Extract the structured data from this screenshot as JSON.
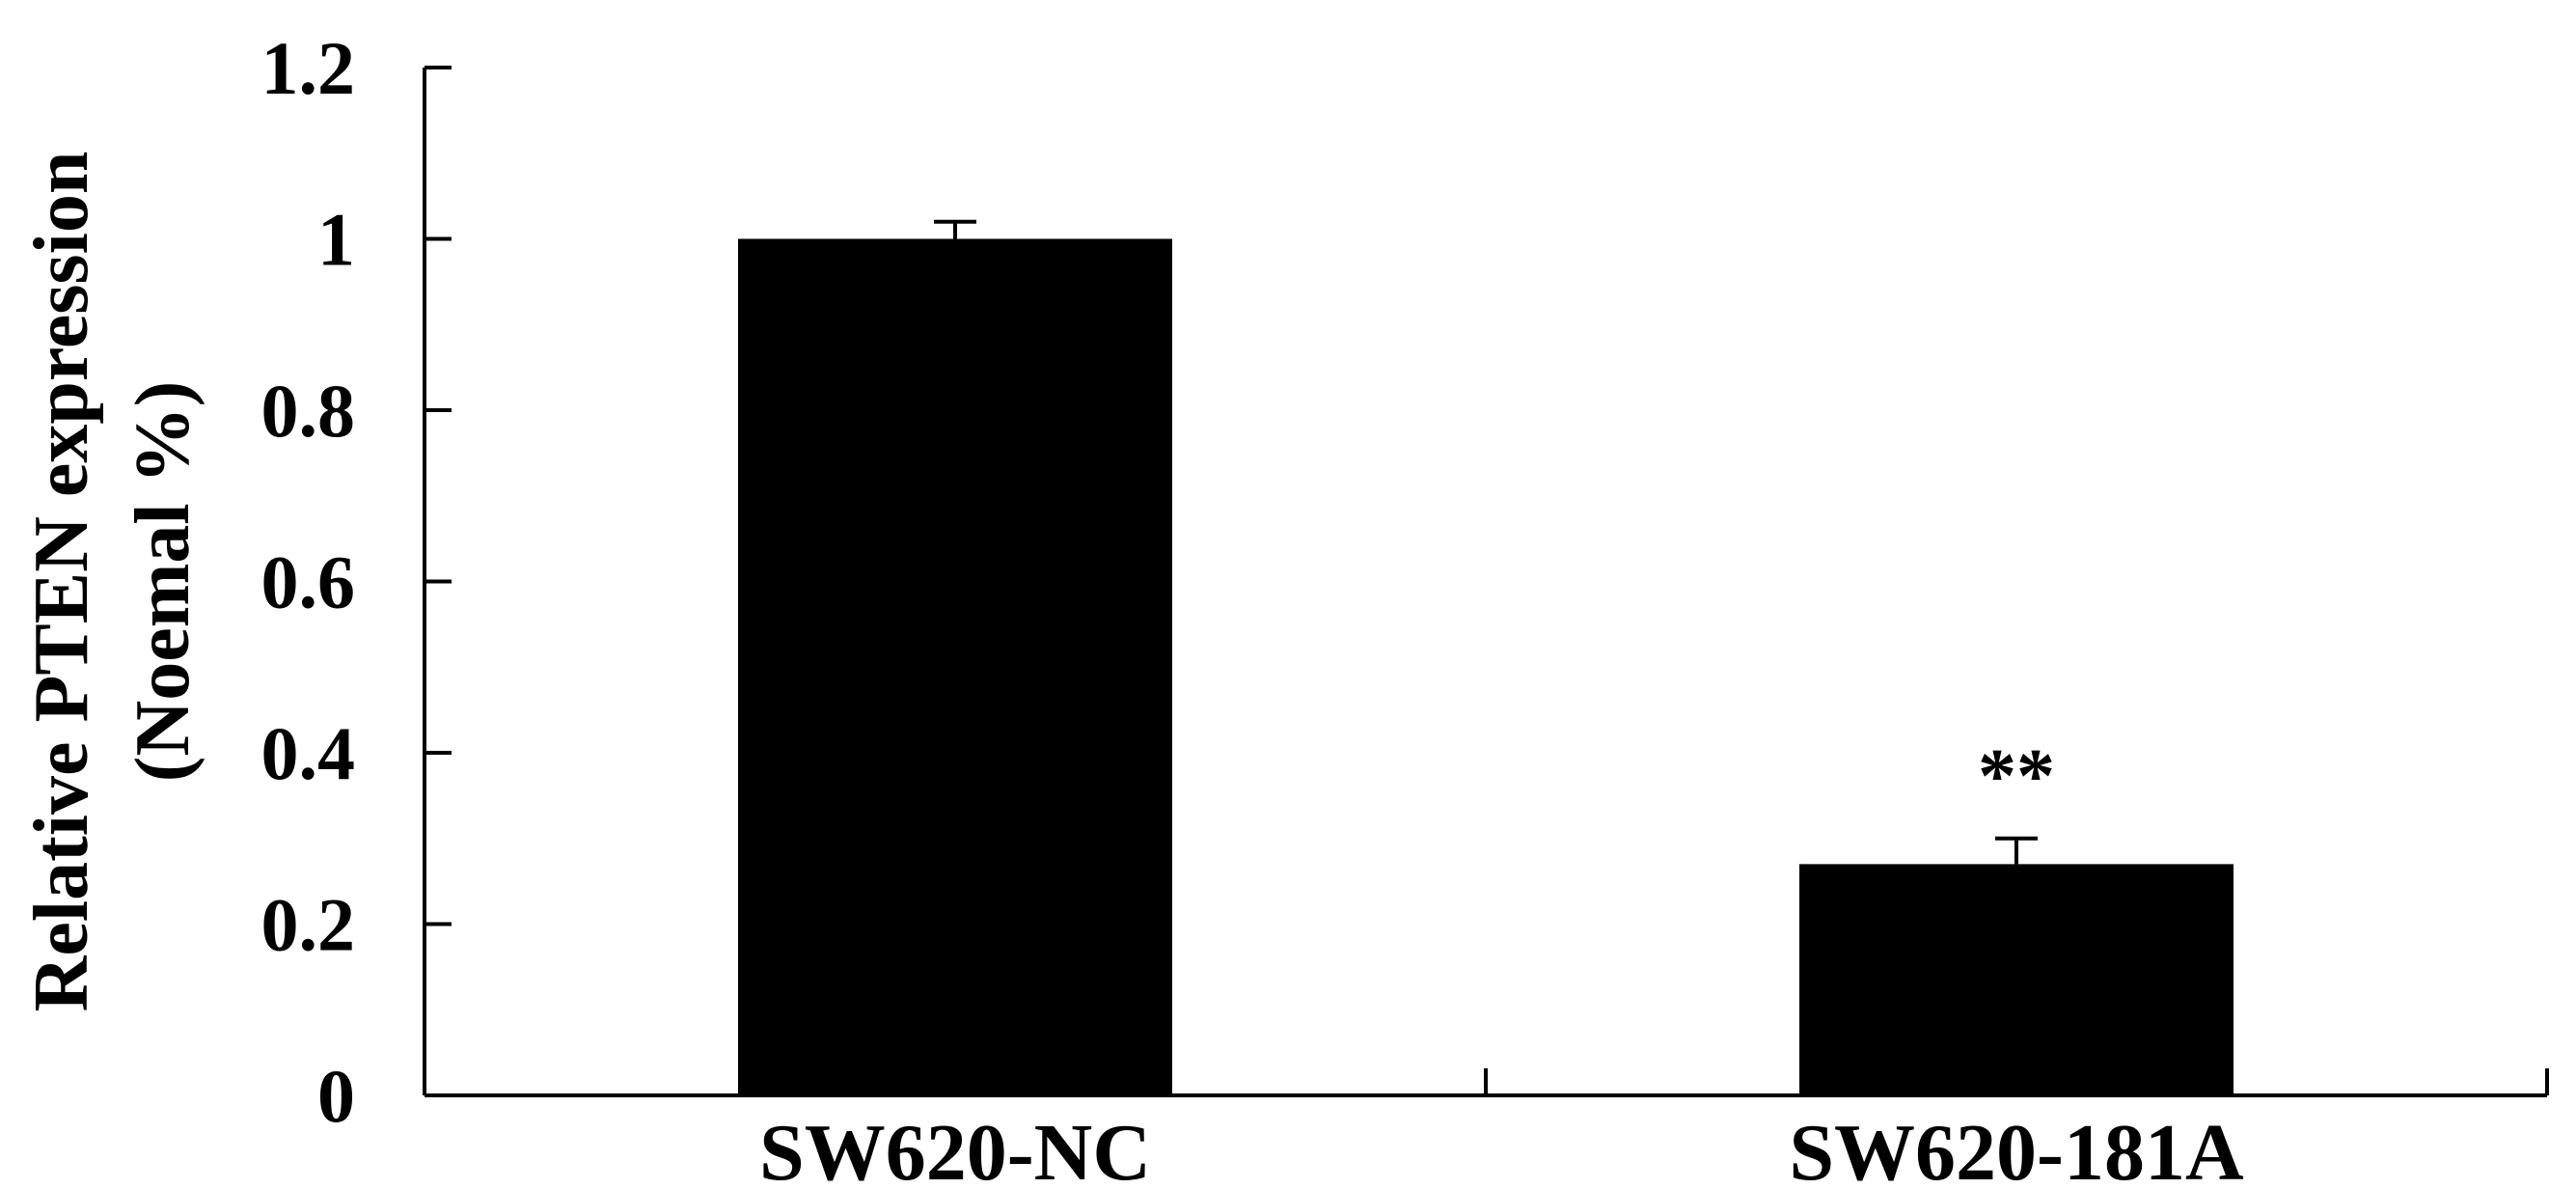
{
  "chart_data": {
    "type": "bar",
    "categories": [
      "SW620-NC",
      "SW620-181A"
    ],
    "values": [
      1.0,
      0.27
    ],
    "errors": [
      0.02,
      0.03
    ],
    "annotations": [
      "",
      "**"
    ],
    "ylabel_line1": "Relative PTEN expression",
    "ylabel_line2": "(Noemal %)",
    "xlabel": "",
    "ylim": [
      0,
      1.2
    ],
    "yticks": [
      "0",
      "0.2",
      "0.4",
      "0.6",
      "0.8",
      "1",
      "1.2"
    ],
    "bar_color": "#000000",
    "grid": false,
    "legend": "none"
  }
}
